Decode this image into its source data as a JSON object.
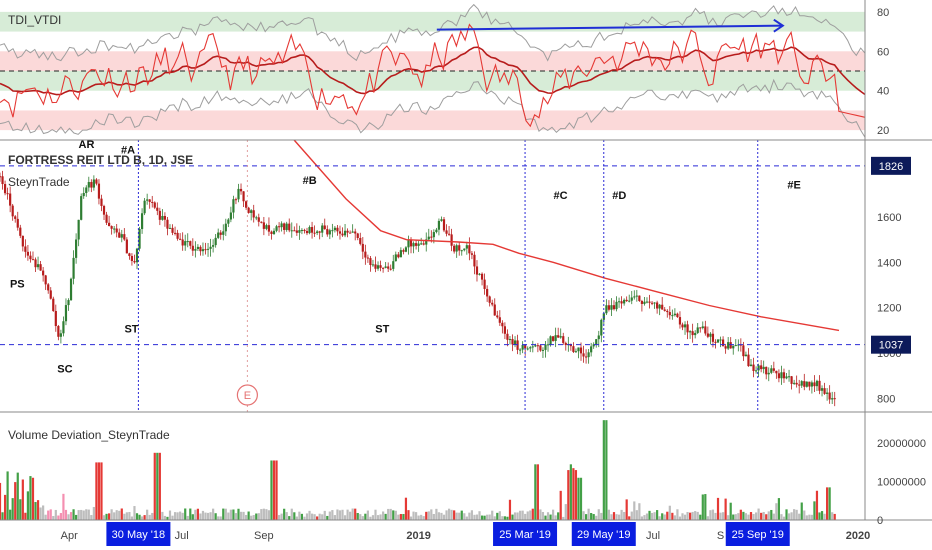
{
  "chart_data": [
    {
      "type": "line",
      "panel": "indicator",
      "title": "TDI_VTDI",
      "ylim": [
        15,
        85
      ],
      "y_ticks": [
        20,
        40,
        60,
        80
      ],
      "bands": [
        {
          "from": 70,
          "to": 80,
          "color": "#d7ecd7"
        },
        {
          "from": 50,
          "to": 60,
          "color": "#fbd9d9"
        },
        {
          "from": 40,
          "to": 50,
          "color": "#d7ecd7"
        },
        {
          "from": 20,
          "to": 30,
          "color": "#fbd9d9"
        }
      ],
      "midline": 50,
      "arrow": {
        "from": [
          0.505,
          71
        ],
        "to": [
          0.905,
          73
        ],
        "color": "#1f2fd6"
      },
      "colors": {
        "fast": "#e53935",
        "slow": "#b71c1c",
        "bands": "#9e9e9e"
      }
    },
    {
      "type": "candlestick",
      "panel": "price",
      "title": "FORTRESS REIT LTD B, 1D, JSE",
      "subtitle": "SteynTrade",
      "ylim": [
        740,
        1940
      ],
      "y_ticks": [
        800,
        1000,
        1200,
        1400,
        1600
      ],
      "y_tick_labels": [
        "800",
        "1000",
        "1200",
        "1400",
        "1600"
      ],
      "levels": [
        {
          "value": 1826,
          "label": "1826",
          "color": "#2b2bd6"
        },
        {
          "value": 1037,
          "label": "1037",
          "color": "#2b2bd6"
        }
      ],
      "anchors": [
        [
          0,
          1780
        ],
        [
          0.012,
          1650
        ],
        [
          0.028,
          1450
        ],
        [
          0.04,
          1400
        ],
        [
          0.055,
          1300
        ],
        [
          0.068,
          1060
        ],
        [
          0.08,
          1260
        ],
        [
          0.095,
          1720
        ],
        [
          0.11,
          1760
        ],
        [
          0.125,
          1550
        ],
        [
          0.14,
          1520
        ],
        [
          0.155,
          1380
        ],
        [
          0.168,
          1700
        ],
        [
          0.185,
          1600
        ],
        [
          0.205,
          1500
        ],
        [
          0.225,
          1460
        ],
        [
          0.245,
          1470
        ],
        [
          0.26,
          1560
        ],
        [
          0.275,
          1720
        ],
        [
          0.29,
          1620
        ],
        [
          0.31,
          1540
        ],
        [
          0.33,
          1560
        ],
        [
          0.35,
          1540
        ],
        [
          0.37,
          1550
        ],
        [
          0.39,
          1530
        ],
        [
          0.41,
          1540
        ],
        [
          0.43,
          1380
        ],
        [
          0.45,
          1380
        ],
        [
          0.47,
          1480
        ],
        [
          0.49,
          1470
        ],
        [
          0.51,
          1580
        ],
        [
          0.525,
          1460
        ],
        [
          0.54,
          1470
        ],
        [
          0.555,
          1330
        ],
        [
          0.57,
          1190
        ],
        [
          0.585,
          1080
        ],
        [
          0.6,
          1020
        ],
        [
          0.625,
          1020
        ],
        [
          0.645,
          1080
        ],
        [
          0.66,
          1030
        ],
        [
          0.675,
          990
        ],
        [
          0.69,
          1060
        ],
        [
          0.7,
          1190
        ],
        [
          0.72,
          1230
        ],
        [
          0.74,
          1240
        ],
        [
          0.76,
          1200
        ],
        [
          0.78,
          1180
        ],
        [
          0.795,
          1090
        ],
        [
          0.81,
          1110
        ],
        [
          0.825,
          1060
        ],
        [
          0.84,
          1030
        ],
        [
          0.855,
          1050
        ],
        [
          0.865,
          950
        ],
        [
          0.885,
          920
        ],
        [
          0.905,
          900
        ],
        [
          0.925,
          860
        ],
        [
          0.94,
          870
        ],
        [
          0.955,
          830
        ],
        [
          0.965,
          790
        ]
      ],
      "moving_average": [
        [
          0.34,
          1940
        ],
        [
          0.4,
          1680
        ],
        [
          0.44,
          1540
        ],
        [
          0.47,
          1500
        ],
        [
          0.53,
          1490
        ],
        [
          0.57,
          1480
        ],
        [
          0.6,
          1440
        ],
        [
          0.64,
          1400
        ],
        [
          0.7,
          1330
        ],
        [
          0.76,
          1270
        ],
        [
          0.82,
          1210
        ],
        [
          0.88,
          1160
        ],
        [
          0.97,
          1100
        ]
      ],
      "ma_color": "#e53935",
      "annotations": [
        {
          "text": "AR",
          "x": 0.1,
          "y": 1905
        },
        {
          "text": "#A",
          "x": 0.148,
          "y": 1880
        },
        {
          "text": "#B",
          "x": 0.358,
          "y": 1745
        },
        {
          "text": "#C",
          "x": 0.648,
          "y": 1680
        },
        {
          "text": "#D",
          "x": 0.716,
          "y": 1680
        },
        {
          "text": "#E",
          "x": 0.918,
          "y": 1725
        },
        {
          "text": "PS",
          "x": 0.02,
          "y": 1290
        },
        {
          "text": "ST",
          "x": 0.152,
          "y": 1090
        },
        {
          "text": "ST",
          "x": 0.442,
          "y": 1090
        },
        {
          "text": "SC",
          "x": 0.075,
          "y": 915
        }
      ],
      "earnings_marker": {
        "text": "E",
        "x": 0.286
      },
      "vertical_markers": [
        0.16,
        0.607,
        0.698,
        0.876
      ],
      "faint_marker": 0.286
    },
    {
      "type": "bar",
      "panel": "volume",
      "title": "Volume Deviation_SteynTrade",
      "ylim": [
        0,
        25000000
      ],
      "y_ticks": [
        0,
        10000000,
        20000000
      ],
      "y_tick_labels": [
        "0",
        "10000000",
        "20000000"
      ],
      "colors": {
        "base": "#bdbdbd",
        "up": "#43a047",
        "down": "#e53935",
        "spike": "#f48fb1"
      }
    }
  ],
  "x_axis": {
    "labels": [
      {
        "text": "Apr",
        "x": 0.08,
        "bold": false
      },
      {
        "text": "Jul",
        "x": 0.21,
        "bold": false
      },
      {
        "text": "Sep",
        "x": 0.305,
        "bold": false
      },
      {
        "text": "2019",
        "x": 0.484,
        "bold": true
      },
      {
        "text": "Jul",
        "x": 0.755,
        "bold": false
      },
      {
        "text": "S",
        "x": 0.833,
        "bold": false
      },
      {
        "text": "2020",
        "x": 1.018,
        "bold": true
      }
    ],
    "date_badges": [
      {
        "text": "30 May '18",
        "x": 0.16
      },
      {
        "text": "25 Mar '19",
        "x": 0.607
      },
      {
        "text": "29 May '19",
        "x": 0.698
      },
      {
        "text": "25 Sep '19",
        "x": 0.876
      }
    ]
  }
}
